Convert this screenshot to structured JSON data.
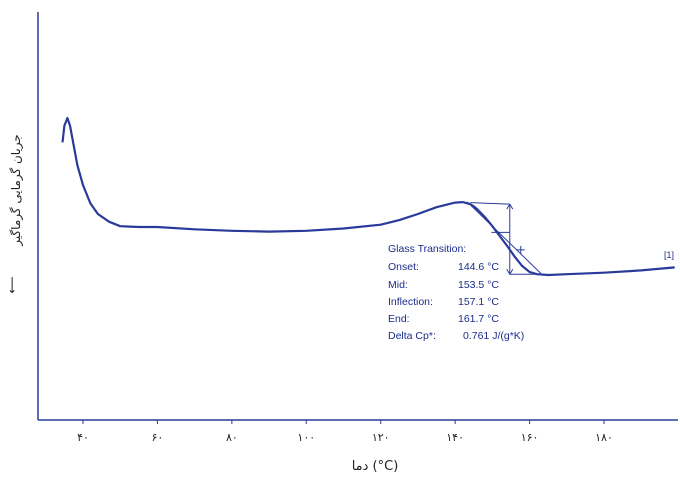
{
  "chart_data": {
    "type": "line",
    "title": "",
    "xlabel": "دما (°C)",
    "ylabel": "جریان گرمایی گرماگیر",
    "ylabel_arrow": "⟵",
    "xlim": [
      33,
      200
    ],
    "ylim": [
      -1.0,
      1.2
    ],
    "x_ticks": [
      {
        "value": 40,
        "label": "۴۰"
      },
      {
        "value": 60,
        "label": "۶۰"
      },
      {
        "value": 80,
        "label": "۸۰"
      },
      {
        "value": 100,
        "label": "۱۰۰"
      },
      {
        "value": 120,
        "label": "۱۲۰"
      },
      {
        "value": 140,
        "label": "۱۴۰"
      },
      {
        "value": 160,
        "label": "۱۶۰"
      },
      {
        "value": 180,
        "label": "۱۸۰"
      }
    ],
    "grid": false,
    "line_color": "#2a3a9a",
    "series": [
      {
        "x": [
          34.5,
          35.0,
          35.8,
          36.5,
          37.5,
          38.5,
          40,
          42,
          44,
          47,
          50,
          55,
          60,
          70,
          80,
          90,
          100,
          110,
          120,
          125,
          130,
          135,
          140,
          142,
          144,
          145,
          146,
          148,
          150,
          152,
          154,
          156,
          158,
          160,
          162,
          165,
          170,
          180,
          190,
          199
        ],
        "y": [
          0.55,
          0.66,
          0.71,
          0.66,
          0.53,
          0.4,
          0.27,
          0.15,
          0.08,
          0.03,
          0.0,
          -0.005,
          -0.005,
          -0.02,
          -0.03,
          -0.035,
          -0.03,
          -0.015,
          0.01,
          0.04,
          0.08,
          0.125,
          0.155,
          0.158,
          0.145,
          0.13,
          0.11,
          0.06,
          0.0,
          -0.065,
          -0.13,
          -0.2,
          -0.26,
          -0.3,
          -0.315,
          -0.32,
          -0.315,
          -0.305,
          -0.29,
          -0.27
        ]
      }
    ],
    "glass_transition": {
      "title": "Glass Transition:",
      "rows": [
        {
          "label": "Onset:",
          "value": "144.6 °C"
        },
        {
          "label": "Mid:",
          "value": "153.5 °C"
        },
        {
          "label": "Inflection:",
          "value": "157.1 °C"
        },
        {
          "label": "End:",
          "value": "161.7 °C"
        },
        {
          "label": "Delta Cp*:",
          "value": "0.761 J/(g*K)"
        }
      ],
      "onset_x": 144.6,
      "mid_x": 153.5,
      "inflection_x": 157.1,
      "end_x": 161.7,
      "marker_label": "[1]"
    }
  }
}
